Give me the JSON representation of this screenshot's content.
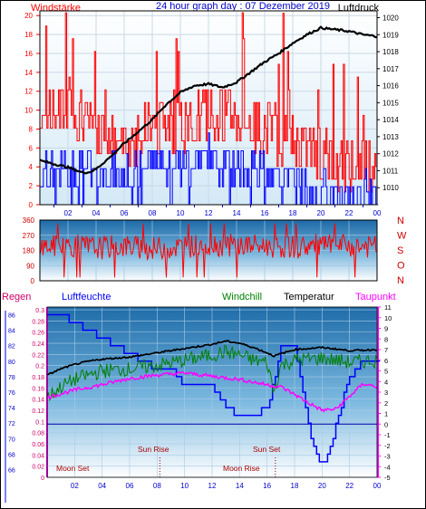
{
  "chart_data": [
    {
      "type": "line",
      "title": "24 hour graph day : 07 Dezember 2019",
      "left_axis_label": "Windstärke",
      "right_axis_label": "Luftdruck",
      "left_ticks": [
        "20",
        "18",
        "16",
        "14",
        "12",
        "10",
        "8",
        "6",
        "4",
        "2",
        "0"
      ],
      "right_ticks": [
        "1020",
        "1019",
        "1018",
        "1017",
        "1016",
        "1015",
        "1014",
        "1013",
        "1012",
        "1011",
        "1010"
      ],
      "x_ticks": [
        "02",
        "04",
        "06",
        "08",
        "10",
        "12",
        "14",
        "16",
        "18",
        "20",
        "22",
        "00"
      ],
      "ylim_left": [
        0,
        20.5
      ],
      "ylim_right": [
        1009,
        1020.4
      ],
      "grid": true,
      "series": [
        {
          "name": "Luftdruck",
          "axis": "right",
          "color": "#000000",
          "x": [
            0,
            1,
            2,
            3,
            3.5,
            4,
            5,
            6,
            7,
            8,
            9,
            10,
            11,
            12,
            13,
            14,
            15,
            16,
            17,
            18,
            19,
            20,
            21,
            22,
            23,
            24
          ],
          "y": [
            1011.6,
            1011.4,
            1011.2,
            1010.9,
            1010.9,
            1011.1,
            1011.8,
            1012.6,
            1013.3,
            1014.0,
            1014.9,
            1015.6,
            1016.0,
            1016.1,
            1015.9,
            1016.2,
            1016.8,
            1017.4,
            1017.9,
            1018.5,
            1019.0,
            1019.4,
            1019.3,
            1019.2,
            1019.0,
            1018.9
          ]
        },
        {
          "name": "Windstärke",
          "axis": "left",
          "color": "#ff0000",
          "x": [
            0,
            2,
            4,
            6,
            8,
            10,
            12,
            14,
            16,
            18,
            20,
            22,
            24
          ],
          "y": [
            8,
            11,
            7,
            6,
            9,
            8,
            10,
            9,
            8,
            7,
            5,
            4,
            4
          ]
        },
        {
          "name": "Windstärke min",
          "axis": "left",
          "color": "#0000ff",
          "x": [
            0,
            2,
            4,
            6,
            8,
            10,
            12,
            14,
            16,
            18,
            20,
            22,
            24
          ],
          "y": [
            3,
            4,
            4,
            3,
            5,
            4,
            5,
            4,
            3,
            3,
            1,
            1,
            2
          ]
        }
      ]
    },
    {
      "type": "line",
      "left_ticks": [
        "360",
        "270",
        "180",
        "90",
        "0"
      ],
      "right_labels": [
        "N",
        "W",
        "S",
        "O",
        "N"
      ],
      "x_ticks": [
        "02",
        "04",
        "06",
        "08",
        "10",
        "12",
        "14",
        "16",
        "18",
        "20",
        "22",
        "00"
      ],
      "ylim": [
        0,
        360
      ],
      "series": [
        {
          "name": "Windrichtung",
          "color": "#ff0000",
          "x": [
            0,
            2,
            4,
            6,
            8,
            10,
            12,
            14,
            16,
            18,
            20,
            22,
            24
          ],
          "y": [
            200,
            210,
            195,
            205,
            190,
            200,
            215,
            210,
            205,
            200,
            210,
            205,
            200
          ]
        }
      ]
    },
    {
      "type": "line",
      "label_regen": "Regen",
      "label_luftfeuchte": "Luftfeuchte",
      "label_windchill": "Windchill",
      "label_temperatur": "Temperatur",
      "label_taupunkt": "Taupunkt",
      "regen_ticks": [
        "0.3",
        "0.28",
        "0.26",
        "0.24",
        "0.22",
        "0.2",
        "0.18",
        "0.16",
        "0.14",
        "0.12",
        "0.1",
        "0.08",
        "0.06",
        "0.04",
        "0.02",
        "0"
      ],
      "feuchte_ticks": [
        "86",
        "84",
        "82",
        "80",
        "78",
        "76",
        "74",
        "72",
        "70",
        "68",
        "66"
      ],
      "temp_ticks": [
        "11",
        "10",
        "9",
        "8",
        "7",
        "6",
        "5",
        "4",
        "3",
        "2",
        "1",
        "0",
        "-1",
        "-2",
        "-3",
        "-4",
        "-5"
      ],
      "x_ticks": [
        "02",
        "04",
        "06",
        "08",
        "10",
        "12",
        "14",
        "16",
        "18",
        "20",
        "22",
        "00"
      ],
      "annotations": {
        "moon_set": "Moon Set",
        "sun_rise": "Sun Rise",
        "sun_set": "Sun Set",
        "moon_rise": "Moon Rise"
      },
      "series": [
        {
          "name": "Temperatur",
          "color": "#000000",
          "x": [
            0,
            1,
            2,
            3,
            4,
            6,
            8,
            10,
            12,
            13,
            14,
            15,
            16,
            16.5,
            17,
            18,
            20,
            22,
            24
          ],
          "y": [
            4.6,
            5.2,
            5.6,
            5.9,
            6.1,
            6.3,
            6.7,
            7.1,
            7.5,
            7.8,
            7.6,
            7.2,
            6.7,
            6.4,
            6.6,
            7.0,
            7.2,
            6.9,
            7.0
          ]
        },
        {
          "name": "Windchill",
          "color": "#008000",
          "x": [
            0,
            1,
            2,
            3,
            4,
            6,
            8,
            10,
            12,
            13,
            14,
            15,
            16,
            16.5,
            17,
            18,
            20,
            22,
            24
          ],
          "y": [
            2.5,
            3.5,
            4.2,
            4.6,
            5.0,
            5.2,
            5.5,
            6.0,
            6.5,
            6.8,
            6.5,
            6.0,
            5.8,
            3.0,
            5.5,
            6.0,
            6.2,
            5.8,
            6.0
          ]
        },
        {
          "name": "Taupunkt",
          "color": "#ff00ff",
          "x": [
            0,
            2,
            4,
            6,
            8,
            10,
            12,
            14,
            16,
            17,
            18,
            19,
            20,
            21,
            22,
            23,
            24
          ],
          "y": [
            2.5,
            3.2,
            3.7,
            4.3,
            4.6,
            4.8,
            4.5,
            4.2,
            3.7,
            3.5,
            2.8,
            2.0,
            1.3,
            1.4,
            2.6,
            3.8,
            3.5
          ]
        },
        {
          "name": "Luftfeuchte",
          "color": "#0000ff",
          "x": [
            0,
            1,
            2,
            3,
            4,
            5,
            6,
            7,
            8,
            9,
            10,
            11,
            12,
            13,
            14,
            15,
            16,
            16.6,
            17,
            18,
            19,
            19.5,
            20,
            20.5,
            21,
            22,
            23,
            24
          ],
          "y": [
            86,
            86,
            85,
            84,
            83,
            82,
            81,
            80,
            79,
            79,
            77,
            77,
            77,
            74,
            73,
            73,
            74,
            78,
            82,
            82,
            72,
            68,
            67,
            68,
            72,
            78,
            80,
            80
          ]
        }
      ]
    }
  ]
}
